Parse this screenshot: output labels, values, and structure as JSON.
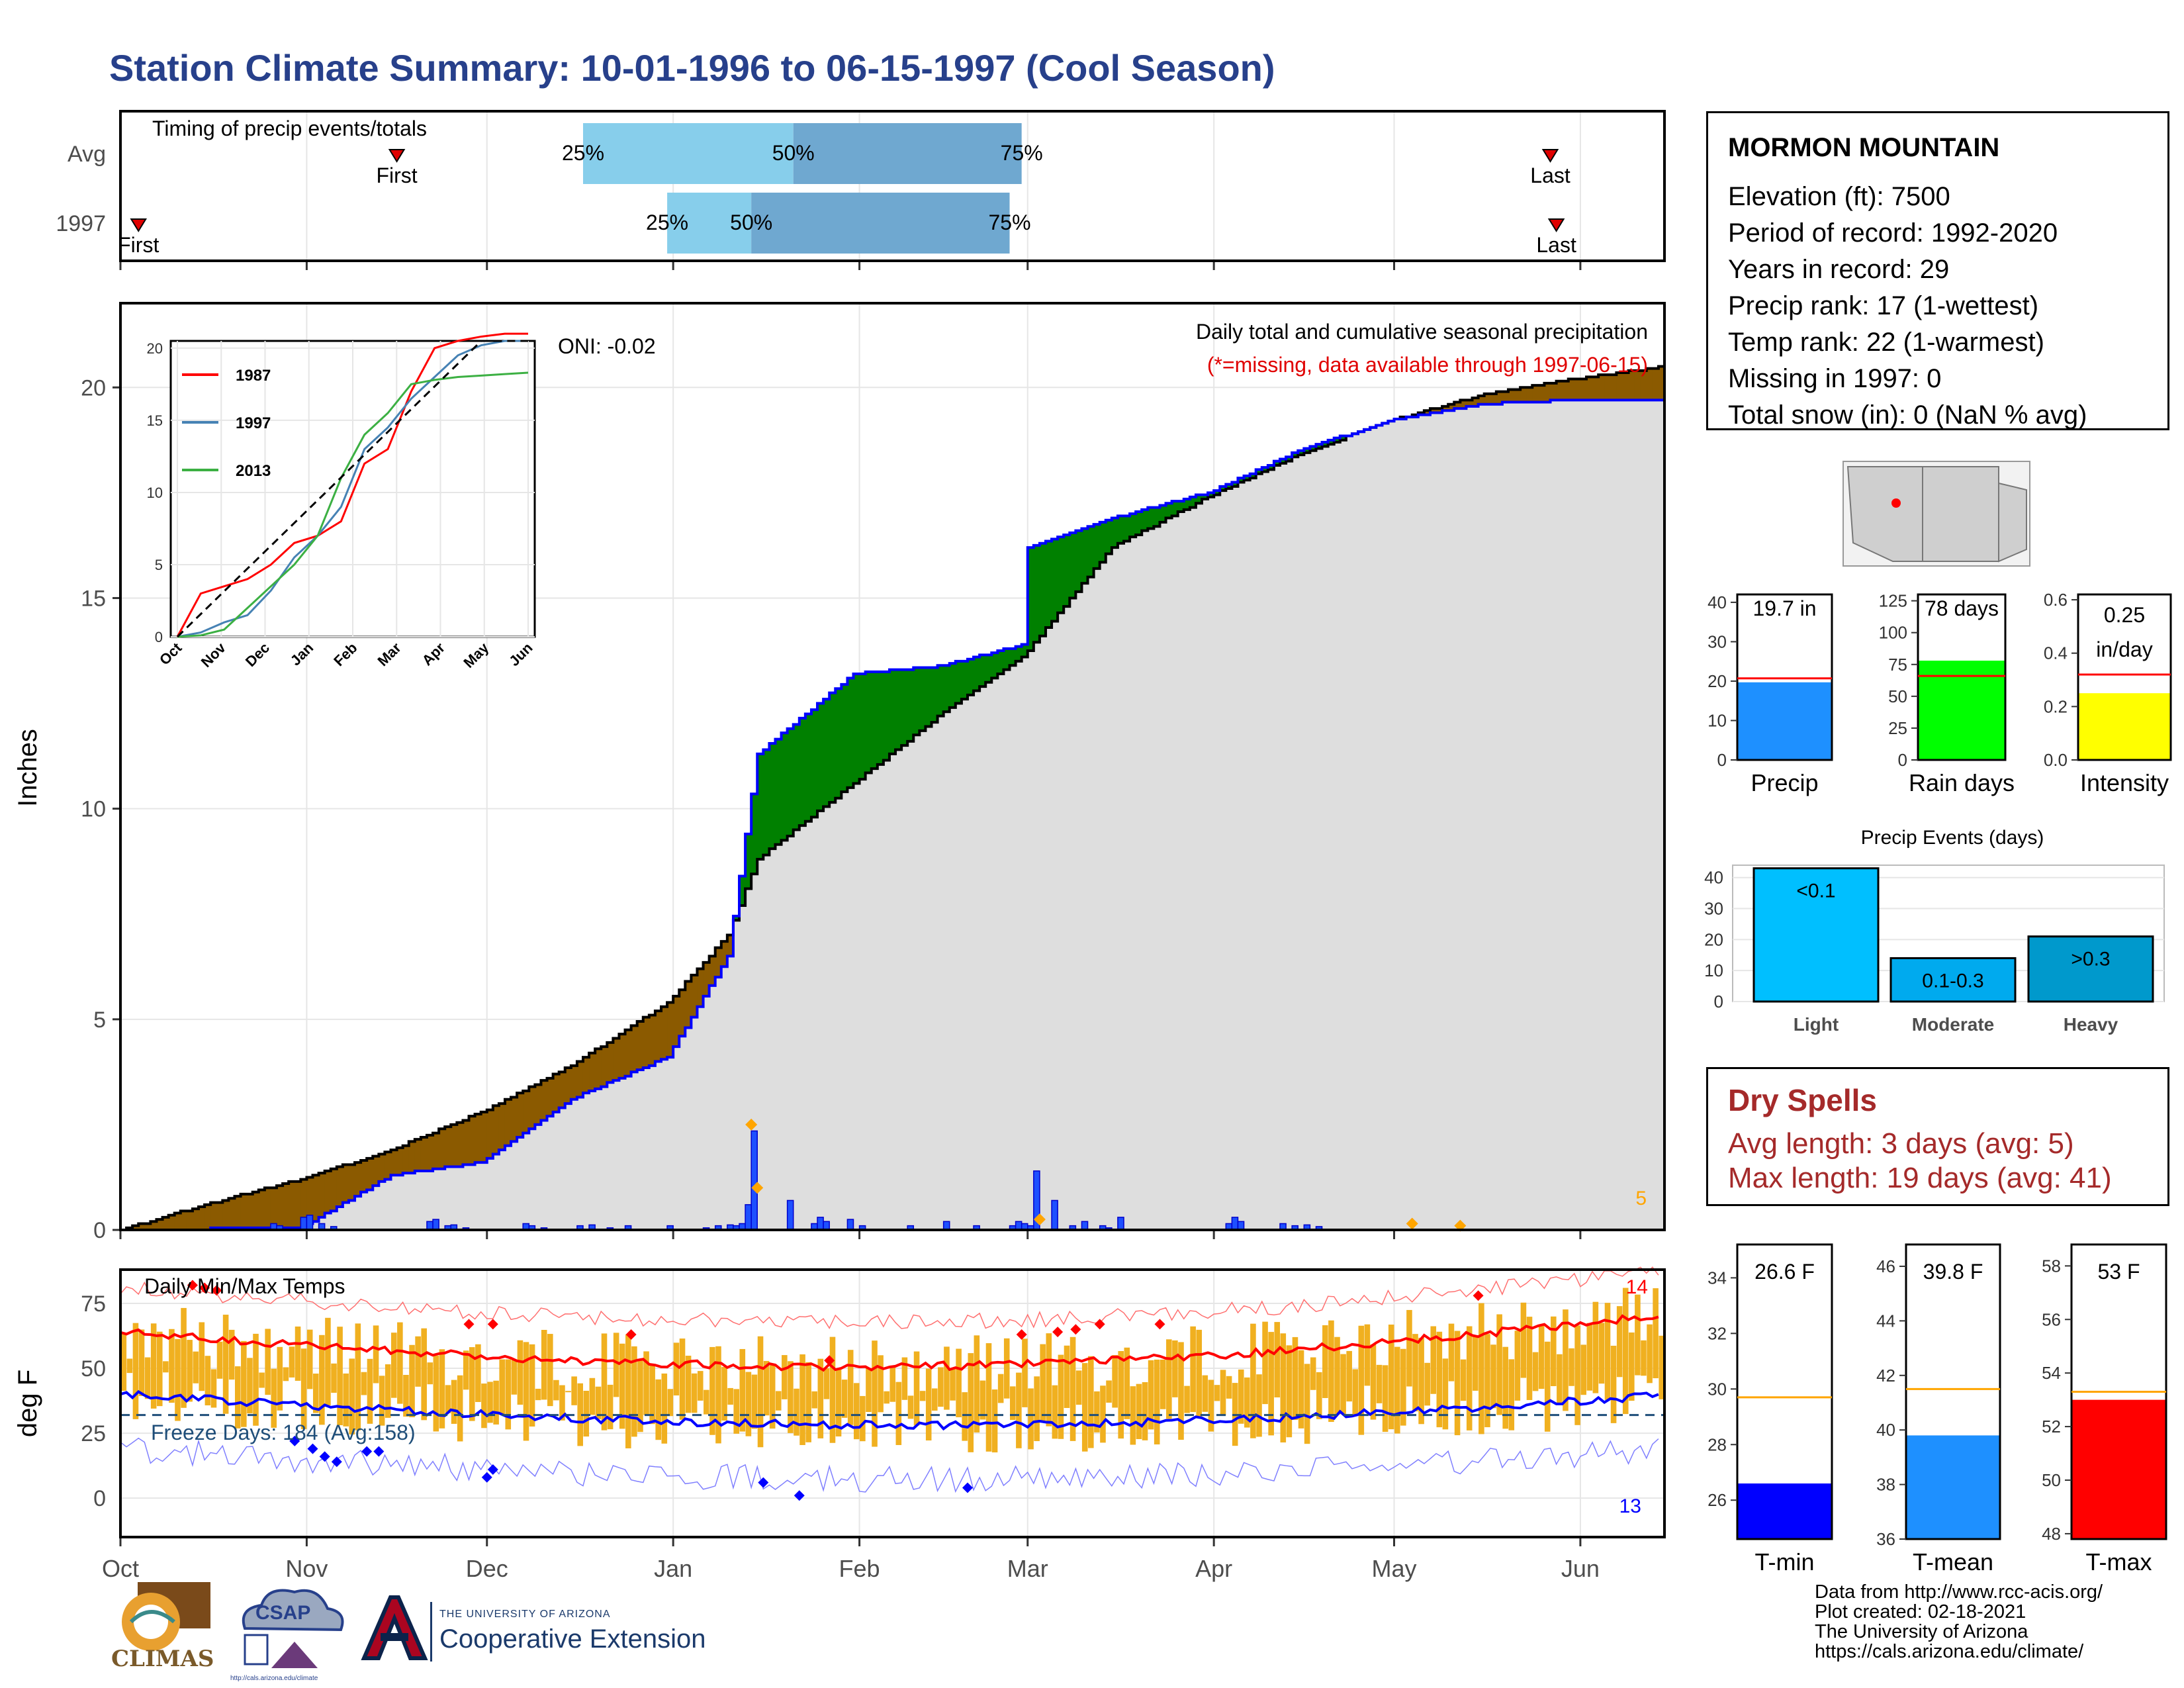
{
  "title": "Station Climate Summary: 10-01-1996 to 06-15-1997 (Cool Season)",
  "timing": {
    "label": "Timing of precip events/totals",
    "rows": [
      {
        "name": "Avg",
        "first_date": "1996-11-16",
        "p25_date": "1996-12-17",
        "p50_date": "1997-01-21",
        "p75_date": "1997-02-28",
        "last_date": "1997-05-27"
      },
      {
        "name": "1997",
        "first_date": "1996-10-04",
        "p25_date": "1996-12-31",
        "p50_date": "1997-01-14",
        "p75_date": "1997-02-26",
        "last_date": "1997-05-28"
      }
    ],
    "first_label": "First",
    "last_label": "Last",
    "p25_label": "25%",
    "p50_label": "50%",
    "p75_label": "75%"
  },
  "precip_panel": {
    "ylabel": "Inches",
    "caption": "Daily total and cumulative seasonal precipitation",
    "missing_note": "(*=missing, data available through 1997-06-15)",
    "oni": "ONI: -0.02",
    "extreme_count": "5"
  },
  "temp_panel": {
    "ylabel": "deg F",
    "label": "Daily Min/Max Temps",
    "freeze": "Freeze Days: 184 (Avg:158)",
    "hot_count": "14",
    "cold_count": "13"
  },
  "station": {
    "name": "MORMON MOUNTAIN",
    "lines": [
      "Elevation (ft): 7500",
      "Period of record: 1992-2020",
      "Years in record: 29",
      "Precip rank: 17 (1-wettest)",
      "Temp rank: 22 (1-warmest)",
      "Missing in 1997: 0",
      "Total snow (in): 0 (NaN % avg)"
    ]
  },
  "summary_bars": [
    {
      "label": "Precip",
      "value": 19.7,
      "avg": 20.7,
      "text": "19.7 in",
      "color": "#1e90ff",
      "ylim": [
        0,
        42
      ],
      "ticks": [
        0,
        10,
        20,
        30,
        40
      ]
    },
    {
      "label": "Rain days",
      "value": 78,
      "avg": 66,
      "text": "78 days",
      "color": "#00ff00",
      "ylim": [
        0,
        130
      ],
      "ticks": [
        0,
        25,
        50,
        75,
        100,
        125
      ]
    },
    {
      "label": "Intensity",
      "value": 0.25,
      "avg": 0.32,
      "text": "0.25 in/day",
      "text_lines": [
        "0.25",
        "in/day"
      ],
      "color": "#ffff00",
      "ylim": [
        0,
        0.62
      ],
      "ticks": [
        "0.0",
        "0.2",
        "0.4",
        "0.6"
      ]
    }
  ],
  "precip_events": {
    "title": "Precip Events (days)",
    "ylim": [
      0,
      44
    ],
    "ticks": [
      0,
      10,
      20,
      30,
      40
    ],
    "bars": [
      {
        "cat": "Light",
        "label": "<0.1",
        "value": 43,
        "color": "#00bfff"
      },
      {
        "cat": "Moderate",
        "label": "0.1-0.3",
        "value": 14,
        "color": "#00aaee"
      },
      {
        "cat": "Heavy",
        "label": ">0.3",
        "value": 21,
        "color": "#0099cc"
      }
    ]
  },
  "dry_spells": {
    "title": "Dry Spells",
    "avg_line": "Avg length: 3 days (avg: 5)",
    "max_line": "Max length: 19 days (avg: 41)"
  },
  "temp_bars": [
    {
      "label": "T-min",
      "value": 26.6,
      "avg": 29.7,
      "text": "26.6 F",
      "color": "#0000ff",
      "ylim": [
        24.6,
        35.2
      ],
      "ticks": [
        26,
        28,
        30,
        32,
        34
      ]
    },
    {
      "label": "T-mean",
      "value": 39.8,
      "avg": 41.5,
      "text": "39.8 F",
      "color": "#1e90ff",
      "ylim": [
        36,
        46.8
      ],
      "ticks": [
        36,
        38,
        40,
        42,
        44,
        46
      ]
    },
    {
      "label": "T-max",
      "value": 53,
      "avg": 53.3,
      "text": "53 F",
      "color": "#ff0000",
      "ylim": [
        47.8,
        58.8
      ],
      "ticks": [
        48,
        50,
        52,
        54,
        56,
        58
      ]
    }
  ],
  "months": [
    "Oct",
    "Nov",
    "Dec",
    "Jan",
    "Feb",
    "Mar",
    "Apr",
    "May",
    "Jun"
  ],
  "inset_months": [
    "Oct",
    "Nov",
    "Dec",
    "Jan",
    "Feb",
    "Mar",
    "Apr",
    "May",
    "Jun"
  ],
  "credits": [
    "Data from http://www.rcc-acis.org/",
    "Plot created: 02-18-2021",
    "The University of Arizona",
    "https://cals.arizona.edu/climate/"
  ],
  "logos": {
    "climas": "CLIMAS",
    "csap": "CSAP",
    "csap_url": "http://cals.arizona.edu/climate",
    "ua_small": "THE UNIVERSITY OF ARIZONA",
    "ua_big": "Cooperative Extension"
  },
  "chart_data": [
    {
      "type": "line",
      "title": "Daily total and cumulative seasonal precipitation",
      "ylabel": "Inches",
      "ylim": [
        0,
        22
      ],
      "x_range": [
        "1996-10-01",
        "1997-06-15"
      ],
      "series": [
        {
          "name": "1997",
          "x": [
            "1996-10-01",
            "1996-10-31",
            "1996-11-15",
            "1996-11-30",
            "1996-12-15",
            "1996-12-31",
            "1997-01-10",
            "1997-01-15",
            "1997-01-31",
            "1997-02-15",
            "1997-02-28",
            "1997-03-01",
            "1997-03-15",
            "1997-03-31",
            "1997-04-15",
            "1997-04-30",
            "1997-05-15",
            "1997-05-31",
            "1997-06-15"
          ],
          "y": [
            0,
            0.05,
            1.3,
            1.6,
            3.1,
            4.1,
            6.5,
            11.3,
            13.2,
            13.4,
            13.9,
            16.2,
            16.9,
            17.5,
            18.5,
            19.2,
            19.6,
            19.7,
            19.7
          ]
        },
        {
          "name": "Avg",
          "x": [
            "1996-10-01",
            "1996-10-15",
            "1996-10-31",
            "1996-11-15",
            "1996-11-30",
            "1996-12-15",
            "1996-12-31",
            "1997-01-10",
            "1997-01-15",
            "1997-01-31",
            "1997-02-15",
            "1997-02-28",
            "1997-03-15",
            "1997-03-31",
            "1997-04-15",
            "1997-04-30",
            "1997-05-15",
            "1997-05-31",
            "1997-06-15"
          ],
          "y": [
            0,
            0.6,
            1.2,
            1.9,
            2.8,
            3.9,
            5.4,
            7.0,
            8.8,
            10.6,
            12.3,
            13.6,
            16.2,
            17.4,
            18.4,
            19.2,
            19.8,
            20.2,
            20.5
          ]
        }
      ],
      "daily_precip": {
        "x": [
          "1996-10-26",
          "1996-10-27",
          "1996-10-31",
          "1996-11-01",
          "1996-11-03",
          "1996-11-05",
          "1996-11-21",
          "1996-11-22",
          "1996-11-24",
          "1996-11-25",
          "1996-11-27",
          "1996-12-07",
          "1996-12-08",
          "1996-12-10",
          "1996-12-16",
          "1996-12-18",
          "1996-12-21",
          "1996-12-24",
          "1996-12-31",
          "1997-01-06",
          "1997-01-08",
          "1997-01-10",
          "1997-01-11",
          "1997-01-12",
          "1997-01-13",
          "1997-01-14",
          "1997-01-20",
          "1997-01-24",
          "1997-01-25",
          "1997-01-26",
          "1997-01-30",
          "1997-02-01",
          "1997-02-09",
          "1997-02-15",
          "1997-02-20",
          "1997-02-26",
          "1997-02-27",
          "1997-02-28",
          "1997-03-01",
          "1997-03-02",
          "1997-03-05",
          "1997-03-08",
          "1997-03-10",
          "1997-03-13",
          "1997-03-14",
          "1997-03-16",
          "1997-04-03",
          "1997-04-04",
          "1997-04-05",
          "1997-04-12",
          "1997-04-14",
          "1997-04-16",
          "1997-04-18"
        ],
        "y": [
          0.15,
          0.1,
          0.3,
          0.35,
          0.15,
          0.08,
          0.2,
          0.25,
          0.1,
          0.12,
          0.05,
          0.15,
          0.1,
          0.05,
          0.1,
          0.12,
          0.05,
          0.1,
          0.1,
          0.05,
          0.1,
          0.12,
          0.1,
          0.15,
          0.6,
          2.35,
          0.7,
          0.15,
          0.3,
          0.2,
          0.25,
          0.1,
          0.1,
          0.2,
          0.1,
          0.1,
          0.2,
          0.15,
          0.1,
          1.4,
          0.7,
          0.1,
          0.2,
          0.1,
          0.05,
          0.3,
          0.15,
          0.3,
          0.2,
          0.15,
          0.1,
          0.12,
          0.08
        ]
      },
      "extreme_markers": {
        "x": [
          "1997-01-14",
          "1997-01-15",
          "1997-03-03",
          "1997-05-04",
          "1997-05-12"
        ],
        "y": [
          2.5,
          1.0,
          0.25,
          0.15,
          0.1
        ]
      },
      "inset": {
        "ylim": [
          0,
          20
        ],
        "series": [
          {
            "name": "1987",
            "color": "#ff0000",
            "y": [
              0,
              3,
              3.5,
              4,
              5,
              6.5,
              7,
              8,
              12,
              13,
              17,
              20,
              20.5,
              20.8,
              21,
              21
            ]
          },
          {
            "name": "1997",
            "color": "#4682b4",
            "y": [
              0,
              0.3,
              1,
              1.5,
              3.2,
              5.5,
              7,
              9,
              13,
              14.5,
              16.5,
              18,
              19.5,
              20.2,
              20.5,
              20.5
            ]
          },
          {
            "name": "2013",
            "color": "#3cb043",
            "y": [
              0,
              0.1,
              0.5,
              2,
              3.5,
              5,
              7,
              11,
              14,
              15.5,
              17.5,
              17.8,
              18,
              18.1,
              18.2,
              18.3
            ]
          }
        ]
      }
    },
    {
      "type": "line",
      "title": "Daily Min/Max Temps",
      "ylabel": "deg F",
      "ylim": [
        -15,
        88
      ],
      "x_range": [
        "1996-10-01",
        "1997-06-15"
      ],
      "series": [
        {
          "name": "avg max",
          "y_start": 64,
          "y_end": 73
        },
        {
          "name": "avg min",
          "y_start": 40,
          "y_end": 41
        },
        {
          "name": "freeze line",
          "y_start": 32,
          "y_end": 32
        }
      ],
      "record_highs": 14,
      "record_lows": 13
    }
  ]
}
